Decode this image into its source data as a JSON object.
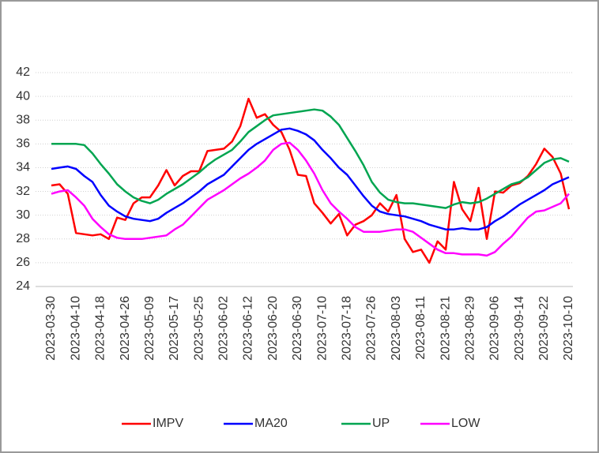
{
  "chart_data": {
    "type": "line",
    "categories": [
      "2023-03-30",
      null,
      null,
      "2023-04-10",
      null,
      null,
      "2023-04-18",
      null,
      null,
      "2023-04-26",
      null,
      null,
      "2023-05-09",
      null,
      null,
      "2023-05-17",
      null,
      null,
      "2023-05-25",
      null,
      null,
      "2023-06-02",
      null,
      null,
      "2023-06-12",
      null,
      null,
      "2023-06-20",
      null,
      null,
      "2023-06-30",
      null,
      null,
      "2023-07-10",
      null,
      null,
      "2023-07-18",
      null,
      null,
      "2023-07-26",
      null,
      null,
      "2023-08-03",
      null,
      null,
      "2023-08-11",
      null,
      null,
      "2023-08-21",
      null,
      null,
      "2023-08-29",
      null,
      null,
      "2023-09-06",
      null,
      null,
      "2023-09-14",
      null,
      null,
      "2023-09-22",
      null,
      null,
      "2023-10-10"
    ],
    "series": [
      {
        "name": "IMPV",
        "color": "#ff0000",
        "values": [
          32.5,
          32.6,
          31.8,
          28.5,
          28.4,
          28.3,
          28.4,
          28.0,
          29.8,
          29.6,
          31.0,
          31.5,
          31.5,
          32.5,
          33.8,
          32.5,
          33.3,
          33.7,
          33.7,
          35.4,
          35.5,
          35.6,
          36.2,
          37.5,
          39.8,
          38.2,
          38.5,
          37.6,
          37.0,
          35.5,
          33.4,
          33.3,
          31.0,
          30.2,
          29.3,
          30.1,
          28.3,
          29.2,
          29.5,
          30.0,
          31.0,
          30.3,
          31.7,
          28.0,
          26.9,
          27.1,
          26.0,
          27.8,
          27.1,
          32.8,
          30.5,
          29.5,
          32.3,
          28.0,
          32.0,
          31.9,
          32.5,
          32.7,
          33.3,
          34.3,
          35.6,
          34.9,
          33.5,
          30.5
        ]
      },
      {
        "name": "MA20",
        "color": "#0000ff",
        "values": [
          33.9,
          34.0,
          34.1,
          33.9,
          33.3,
          32.8,
          31.7,
          30.8,
          30.3,
          29.9,
          29.7,
          29.6,
          29.5,
          29.7,
          30.2,
          30.6,
          31.0,
          31.5,
          32.0,
          32.6,
          33.0,
          33.4,
          34.1,
          34.8,
          35.5,
          36.0,
          36.4,
          36.8,
          37.2,
          37.3,
          37.1,
          36.8,
          36.3,
          35.5,
          34.8,
          34.0,
          33.4,
          32.5,
          31.6,
          30.8,
          30.3,
          30.1,
          30.0,
          29.9,
          29.7,
          29.5,
          29.2,
          29.0,
          28.8,
          28.8,
          28.9,
          28.8,
          28.8,
          29.0,
          29.5,
          29.9,
          30.4,
          30.9,
          31.3,
          31.7,
          32.1,
          32.6,
          32.9,
          33.2
        ]
      },
      {
        "name": "UP",
        "color": "#00a550",
        "values": [
          36.0,
          36.0,
          36.0,
          36.0,
          35.9,
          35.2,
          34.3,
          33.5,
          32.6,
          32.0,
          31.5,
          31.2,
          31.0,
          31.3,
          31.8,
          32.2,
          32.6,
          33.1,
          33.6,
          34.2,
          34.7,
          35.1,
          35.5,
          36.2,
          37.0,
          37.5,
          38.0,
          38.4,
          38.5,
          38.6,
          38.7,
          38.8,
          38.9,
          38.8,
          38.3,
          37.6,
          36.5,
          35.4,
          34.2,
          32.8,
          31.9,
          31.3,
          31.1,
          31.0,
          31.0,
          30.9,
          30.8,
          30.7,
          30.6,
          30.9,
          31.1,
          31.0,
          31.1,
          31.4,
          31.8,
          32.2,
          32.6,
          32.8,
          33.2,
          33.8,
          34.4,
          34.7,
          34.8,
          34.5
        ]
      },
      {
        "name": "LOW",
        "color": "#ff00ff",
        "values": [
          31.8,
          32.0,
          32.1,
          31.5,
          30.8,
          29.7,
          29.0,
          28.4,
          28.1,
          28.0,
          28.0,
          28.0,
          28.1,
          28.2,
          28.3,
          28.8,
          29.2,
          29.9,
          30.6,
          31.3,
          31.7,
          32.1,
          32.6,
          33.1,
          33.5,
          34.0,
          34.6,
          35.5,
          36.0,
          36.1,
          35.5,
          34.6,
          33.5,
          32.1,
          31.0,
          30.3,
          29.7,
          29.0,
          28.6,
          28.6,
          28.6,
          28.7,
          28.8,
          28.8,
          28.6,
          28.1,
          27.6,
          27.1,
          26.8,
          26.8,
          26.7,
          26.7,
          26.7,
          26.6,
          26.9,
          27.6,
          28.2,
          29.0,
          29.8,
          30.3,
          30.4,
          30.7,
          31.0,
          31.8
        ]
      }
    ],
    "ylim": [
      24,
      42
    ],
    "yticks": [
      24,
      26,
      28,
      30,
      32,
      34,
      36,
      38,
      40,
      42
    ],
    "grid": true,
    "legend": "bottom"
  }
}
